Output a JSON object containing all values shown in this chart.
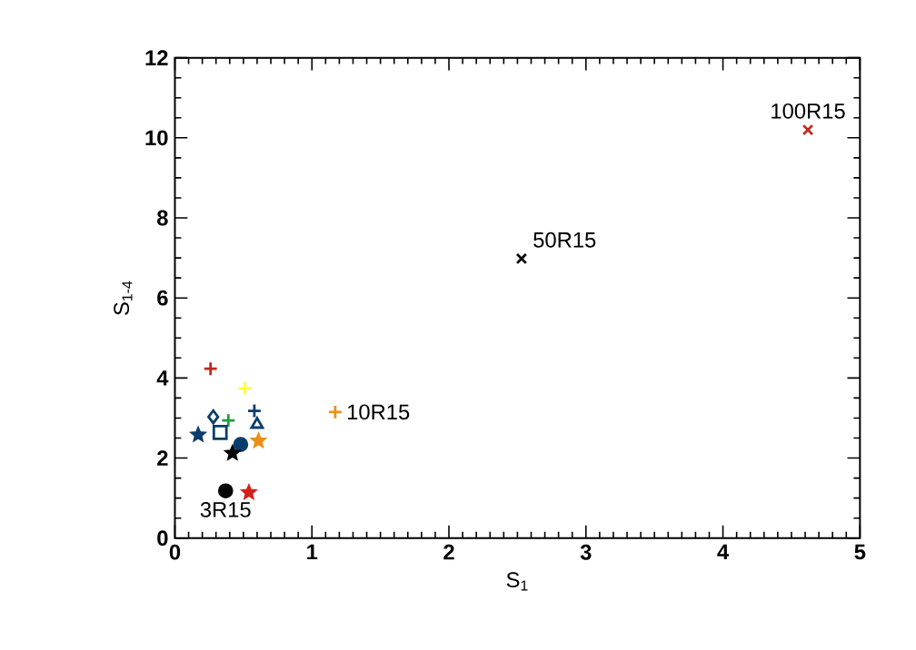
{
  "chart_data": {
    "type": "scatter",
    "xlabel": "S$_{1}$",
    "ylabel": "S$_{1-4}$",
    "xlim": [
      0,
      5
    ],
    "ylim": [
      0,
      12
    ],
    "xticks": [
      0,
      1,
      2,
      3,
      4,
      5
    ],
    "yticks": [
      0,
      2,
      4,
      6,
      8,
      10,
      12
    ],
    "series": [
      {
        "color": "#c0281e",
        "marker": "plus",
        "x": [
          0.26
        ],
        "values": [
          4.23
        ]
      },
      {
        "color": "#ffff33",
        "marker": "plus",
        "x": [
          0.51
        ],
        "values": [
          3.74
        ]
      },
      {
        "color": "#0a3d6b",
        "marker": "triangle",
        "x": [
          0.6
        ],
        "values": [
          2.84
        ]
      },
      {
        "color": "#1f9e3a",
        "marker": "plus",
        "x": [
          0.39
        ],
        "values": [
          2.94
        ]
      },
      {
        "color": "#0a3d6b",
        "marker": "diamond",
        "x": [
          0.28
        ],
        "values": [
          3.03
        ]
      },
      {
        "color": "#0a3d6b",
        "marker": "square",
        "x": [
          0.33
        ],
        "values": [
          2.64
        ]
      },
      {
        "color": "#0a3d6b",
        "marker": "star",
        "x": [
          0.17
        ],
        "values": [
          2.58
        ]
      },
      {
        "color": "#0a3d6b",
        "marker": "circle",
        "x": [
          0.48
        ],
        "values": [
          2.34
        ]
      },
      {
        "color": "#e8911a",
        "marker": "star",
        "x": [
          0.61
        ],
        "values": [
          2.43
        ]
      },
      {
        "color": "#000000",
        "marker": "star",
        "x": [
          0.42
        ],
        "values": [
          2.12
        ]
      },
      {
        "color": "#000000",
        "marker": "circle",
        "x": [
          0.37
        ],
        "values": [
          1.18
        ]
      },
      {
        "color": "#d4201a",
        "marker": "star",
        "x": [
          0.54
        ],
        "values": [
          1.14
        ]
      },
      {
        "color": "#e8911a",
        "marker": "plus",
        "x": [
          1.17
        ],
        "values": [
          3.15
        ]
      },
      {
        "color": "#000000",
        "marker": "cross",
        "x": [
          2.53
        ],
        "values": [
          6.98
        ]
      },
      {
        "color": "#c0281e",
        "marker": "cross",
        "x": [
          4.62
        ],
        "values": [
          10.2
        ]
      },
      {
        "color": "#0a3d6b",
        "marker": "plus",
        "x": [
          0.58
        ],
        "values": [
          3.18
        ]
      }
    ],
    "annotations": [
      {
        "text": "3R15",
        "x": 0.37,
        "y": 1.18
      },
      {
        "text": "10R15",
        "x": 1.17,
        "y": 3.15
      },
      {
        "text": "50R15",
        "x": 2.53,
        "y": 6.98
      },
      {
        "text": "100R15",
        "x": 4.62,
        "y": 10.2
      }
    ]
  }
}
